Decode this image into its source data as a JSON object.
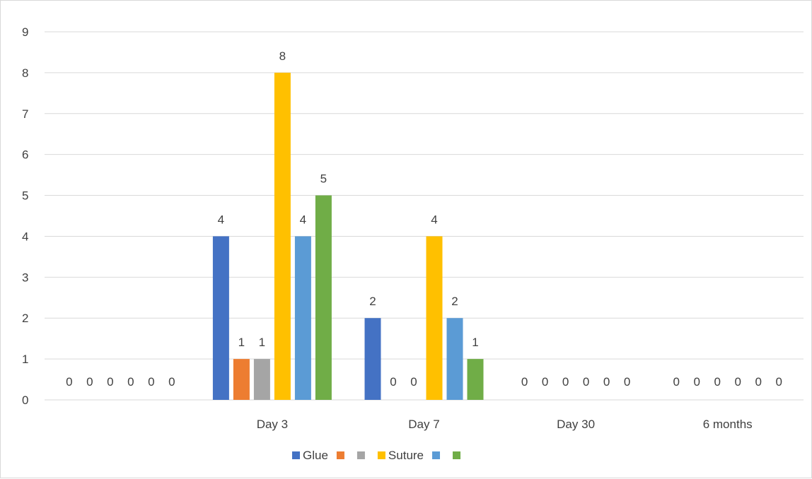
{
  "chart_data": {
    "type": "bar",
    "categories": [
      "",
      "Day 3",
      "Day 7",
      "Day 30",
      "6 months"
    ],
    "series": [
      {
        "name": "Glue",
        "color": "#4472C4",
        "values": [
          0,
          4,
          2,
          0,
          0
        ]
      },
      {
        "name": "",
        "color": "#ED7D31",
        "values": [
          0,
          1,
          0,
          0,
          0
        ]
      },
      {
        "name": "",
        "color": "#A5A5A5",
        "values": [
          0,
          1,
          0,
          0,
          0
        ]
      },
      {
        "name": "Suture",
        "color": "#FFC000",
        "values": [
          0,
          8,
          4,
          0,
          0
        ]
      },
      {
        "name": "",
        "color": "#5B9BD5",
        "values": [
          0,
          4,
          2,
          0,
          0
        ]
      },
      {
        "name": "",
        "color": "#70AD47",
        "values": [
          0,
          5,
          1,
          0,
          0
        ]
      }
    ],
    "ylim": [
      0,
      9
    ],
    "yticks": [
      "0",
      "1",
      "2",
      "3",
      "4",
      "5",
      "6",
      "7",
      "8",
      "9"
    ],
    "grid": true,
    "legend_position": "bottom",
    "data_labels": true
  }
}
